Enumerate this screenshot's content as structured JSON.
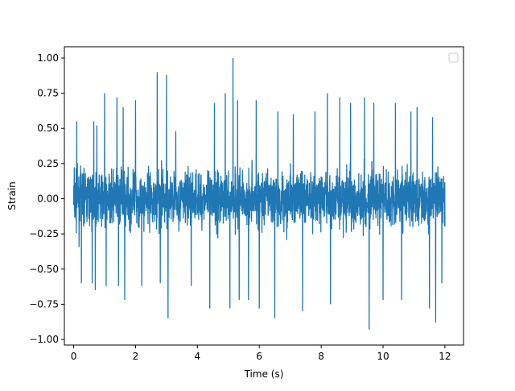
{
  "chart_data": {
    "type": "line",
    "title": "",
    "xlabel": "Time (s)",
    "ylabel": "Strain",
    "xlim": [
      -0.3,
      12.6
    ],
    "ylim": [
      -1.04,
      1.08
    ],
    "x_ticks": [
      0,
      2,
      4,
      6,
      8,
      10,
      12
    ],
    "y_ticks": [
      -1.0,
      -0.75,
      -0.5,
      -0.25,
      0.0,
      0.25,
      0.5,
      0.75,
      1.0
    ],
    "x_tick_labels": [
      "0",
      "2",
      "4",
      "6",
      "8",
      "10",
      "12"
    ],
    "y_tick_labels": [
      "−1.00",
      "−0.75",
      "−0.50",
      "−0.25",
      "0.00",
      "0.25",
      "0.50",
      "0.75",
      "1.00"
    ],
    "grid": false,
    "legend": {
      "placement": "upper-right",
      "entries": []
    },
    "series": [
      {
        "color": "#1f77b4",
        "x_range": [
          0,
          12
        ],
        "typical_envelope": [
          -0.45,
          0.45
        ],
        "peaks": [
          {
            "x": 0.1,
            "y": 0.55
          },
          {
            "x": 0.25,
            "y": -0.6
          },
          {
            "x": 0.6,
            "y": -0.6
          },
          {
            "x": 0.65,
            "y": 0.55
          },
          {
            "x": 0.7,
            "y": -0.65
          },
          {
            "x": 0.75,
            "y": 0.52
          },
          {
            "x": 1.0,
            "y": 0.75
          },
          {
            "x": 1.05,
            "y": -0.62
          },
          {
            "x": 1.4,
            "y": 0.72
          },
          {
            "x": 1.45,
            "y": -0.62
          },
          {
            "x": 1.6,
            "y": 0.65
          },
          {
            "x": 1.65,
            "y": -0.72
          },
          {
            "x": 2.0,
            "y": 0.7
          },
          {
            "x": 2.2,
            "y": -0.62
          },
          {
            "x": 2.7,
            "y": 0.9
          },
          {
            "x": 2.8,
            "y": -0.6
          },
          {
            "x": 3.0,
            "y": 0.88
          },
          {
            "x": 3.05,
            "y": -0.85
          },
          {
            "x": 3.3,
            "y": 0.48
          },
          {
            "x": 3.8,
            "y": -0.62
          },
          {
            "x": 4.4,
            "y": -0.78
          },
          {
            "x": 4.55,
            "y": 0.68
          },
          {
            "x": 4.9,
            "y": 0.75
          },
          {
            "x": 5.05,
            "y": -0.78
          },
          {
            "x": 5.15,
            "y": 1.0
          },
          {
            "x": 5.3,
            "y": 0.7
          },
          {
            "x": 5.35,
            "y": -0.72
          },
          {
            "x": 5.65,
            "y": -0.72
          },
          {
            "x": 5.9,
            "y": 0.7
          },
          {
            "x": 6.0,
            "y": -0.78
          },
          {
            "x": 6.5,
            "y": -0.85
          },
          {
            "x": 6.6,
            "y": 0.62
          },
          {
            "x": 7.1,
            "y": 0.6
          },
          {
            "x": 7.4,
            "y": -0.8
          },
          {
            "x": 7.8,
            "y": 0.62
          },
          {
            "x": 8.2,
            "y": 0.75
          },
          {
            "x": 8.3,
            "y": -0.75
          },
          {
            "x": 8.6,
            "y": 0.72
          },
          {
            "x": 8.95,
            "y": 0.68
          },
          {
            "x": 9.4,
            "y": 0.72
          },
          {
            "x": 9.55,
            "y": -0.93
          },
          {
            "x": 9.7,
            "y": 0.68
          },
          {
            "x": 10.0,
            "y": -0.72
          },
          {
            "x": 10.4,
            "y": 0.68
          },
          {
            "x": 10.6,
            "y": -0.72
          },
          {
            "x": 10.9,
            "y": 0.62
          },
          {
            "x": 11.1,
            "y": 0.65
          },
          {
            "x": 11.5,
            "y": -0.78
          },
          {
            "x": 11.6,
            "y": 0.58
          },
          {
            "x": 11.7,
            "y": -0.88
          },
          {
            "x": 11.9,
            "y": -0.6
          }
        ]
      }
    ]
  }
}
